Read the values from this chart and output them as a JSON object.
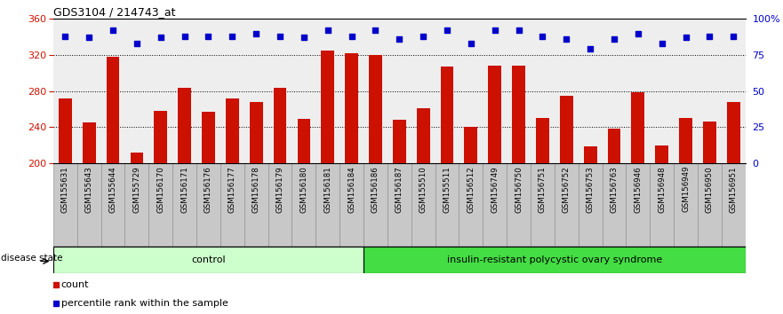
{
  "title": "GDS3104 / 214743_at",
  "categories": [
    "GSM155631",
    "GSM155643",
    "GSM155644",
    "GSM155729",
    "GSM156170",
    "GSM156171",
    "GSM156176",
    "GSM156177",
    "GSM156178",
    "GSM156179",
    "GSM156180",
    "GSM156181",
    "GSM156184",
    "GSM156186",
    "GSM156187",
    "GSM155510",
    "GSM155511",
    "GSM156512",
    "GSM156749",
    "GSM156750",
    "GSM156751",
    "GSM156752",
    "GSM156753",
    "GSM156763",
    "GSM156946",
    "GSM156948",
    "GSM156949",
    "GSM156950",
    "GSM156951"
  ],
  "bar_values": [
    272,
    245,
    318,
    212,
    258,
    284,
    257,
    272,
    268,
    284,
    249,
    325,
    322,
    320,
    248,
    261,
    307,
    240,
    308,
    308,
    250,
    275,
    219,
    238,
    279,
    220,
    250,
    246,
    268
  ],
  "percentile_values": [
    88,
    87,
    92,
    83,
    87,
    88,
    88,
    88,
    90,
    88,
    87,
    92,
    88,
    92,
    86,
    88,
    92,
    83,
    92,
    92,
    88,
    86,
    79,
    86,
    90,
    83,
    87,
    88,
    88
  ],
  "group_labels": [
    "control",
    "insulin-resistant polycystic ovary syndrome"
  ],
  "group_sizes": [
    13,
    16
  ],
  "bar_color": "#CC1100",
  "dot_color": "#0000CC",
  "ymin": 200,
  "ymax": 360,
  "yticks_left": [
    200,
    240,
    280,
    320,
    360
  ],
  "yticks_right": [
    0,
    25,
    50,
    75,
    100
  ],
  "grid_lines": [
    240,
    280,
    320
  ],
  "disease_state_label": "disease state",
  "legend_count_label": "count",
  "legend_perc_label": "percentile rank within the sample",
  "control_color": "#CCFFCC",
  "pcos_color": "#44DD44",
  "tick_bg_color": "#C8C8C8"
}
